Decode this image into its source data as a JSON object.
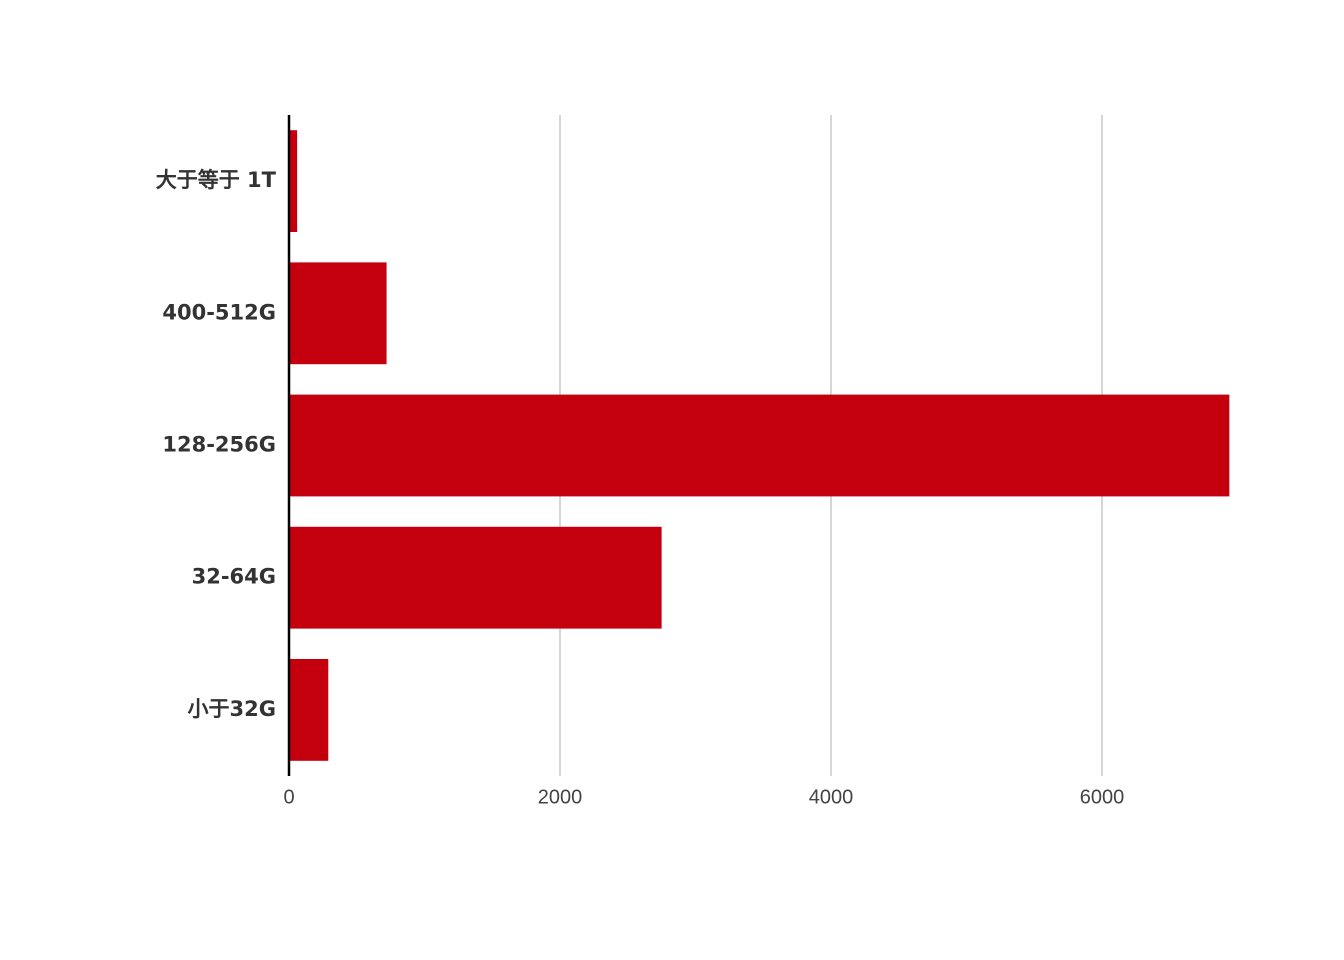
{
  "chart_data": {
    "type": "bar",
    "orientation": "horizontal",
    "categories": [
      "大于等于 1T",
      "400-512G",
      "128-256G",
      "32-64G",
      "小于32G"
    ],
    "values": [
      60,
      720,
      6940,
      2750,
      290
    ],
    "color": "#c4000f",
    "xlim": [
      0,
      7000
    ],
    "xticks": [
      0,
      2000,
      4000,
      6000
    ],
    "grid": true
  }
}
